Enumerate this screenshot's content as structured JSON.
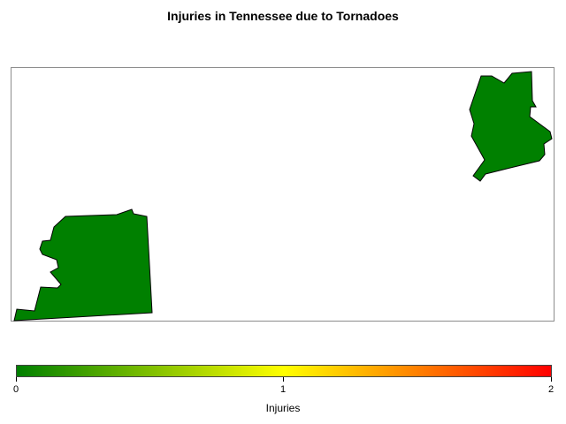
{
  "title": "Injuries in Tennessee due to Tornadoes",
  "chart_data": {
    "type": "choropleth",
    "title": "Injuries in Tennessee due to Tornadoes",
    "regions": [
      {
        "name": "",
        "value": 0,
        "fill": "#008000"
      },
      {
        "name": "",
        "value": 0,
        "fill": "#008000"
      }
    ],
    "colorbar": {
      "label": "Injuries",
      "min": 0,
      "max": 2,
      "ticks": [
        "0",
        "1",
        "2"
      ],
      "colors": [
        "#008000",
        "#ffff00",
        "#ff0000"
      ],
      "placement": "bottom"
    }
  }
}
